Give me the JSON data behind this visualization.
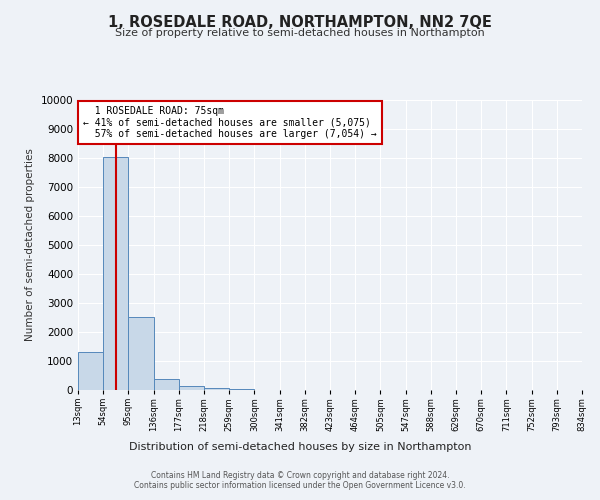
{
  "title": "1, ROSEDALE ROAD, NORTHAMPTON, NN2 7QE",
  "subtitle": "Size of property relative to semi-detached houses in Northampton",
  "xlabel": "Distribution of semi-detached houses by size in Northampton",
  "ylabel": "Number of semi-detached properties",
  "bar_values": [
    1300,
    8050,
    2530,
    370,
    130,
    70,
    20,
    10,
    5,
    3,
    2,
    1,
    1,
    0,
    0,
    0,
    0,
    0,
    0,
    0
  ],
  "bin_labels": [
    "13sqm",
    "54sqm",
    "95sqm",
    "136sqm",
    "177sqm",
    "218sqm",
    "259sqm",
    "300sqm",
    "341sqm",
    "382sqm",
    "423sqm",
    "464sqm",
    "505sqm",
    "547sqm",
    "588sqm",
    "629sqm",
    "670sqm",
    "711sqm",
    "752sqm",
    "793sqm",
    "834sqm"
  ],
  "ylim": [
    0,
    10000
  ],
  "yticks": [
    0,
    1000,
    2000,
    3000,
    4000,
    5000,
    6000,
    7000,
    8000,
    9000,
    10000
  ],
  "property_size": 75,
  "property_label": "1 ROSEDALE ROAD: 75sqm",
  "pct_smaller": 41,
  "pct_larger": 57,
  "n_smaller": 5075,
  "n_larger": 7054,
  "bar_color": "#c8d8e8",
  "bar_edge_color": "#5588bb",
  "redline_bar_index": 1,
  "annotation_box_color": "#ffffff",
  "annotation_box_edge": "#cc0000",
  "redline_color": "#cc0000",
  "footer_line1": "Contains HM Land Registry data © Crown copyright and database right 2024.",
  "footer_line2": "Contains public sector information licensed under the Open Government Licence v3.0.",
  "background_color": "#eef2f7",
  "plot_bg_color": "#eef2f7"
}
